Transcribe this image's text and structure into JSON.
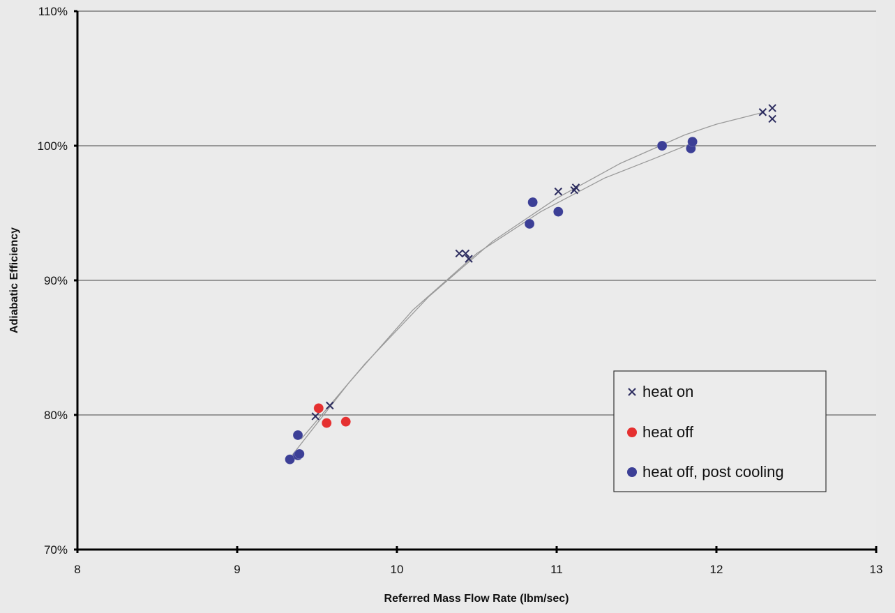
{
  "chart_data": {
    "type": "scatter",
    "title": "",
    "xlabel": "Referred Mass Flow Rate (lbm/sec)",
    "ylabel": "Adiabatic Efficiency",
    "xlim": [
      8,
      13
    ],
    "ylim": [
      70,
      110
    ],
    "x_ticks": [
      8,
      9,
      10,
      11,
      12,
      13
    ],
    "x_tick_labels": [
      "8",
      "9",
      "10",
      "11",
      "12",
      "13"
    ],
    "y_ticks": [
      70,
      80,
      90,
      100,
      110
    ],
    "y_tick_labels": [
      "70%",
      "80%",
      "90%",
      "100%",
      "110%"
    ],
    "grid": "horizontal",
    "legend_position": "lower-right",
    "series": [
      {
        "name": "heat on",
        "marker": "x",
        "color": "#2b2b5e",
        "points": [
          {
            "x": 9.49,
            "y": 79.9
          },
          {
            "x": 9.58,
            "y": 80.7
          },
          {
            "x": 10.39,
            "y": 92.0
          },
          {
            "x": 10.43,
            "y": 92.0
          },
          {
            "x": 10.45,
            "y": 91.6
          },
          {
            "x": 11.01,
            "y": 96.6
          },
          {
            "x": 11.11,
            "y": 96.7
          },
          {
            "x": 11.12,
            "y": 96.9
          },
          {
            "x": 12.29,
            "y": 102.5
          },
          {
            "x": 12.35,
            "y": 102.8
          },
          {
            "x": 12.35,
            "y": 102.0
          }
        ]
      },
      {
        "name": "heat off",
        "marker": "circle",
        "color": "#e53030",
        "points": [
          {
            "x": 9.51,
            "y": 80.5
          },
          {
            "x": 9.56,
            "y": 79.4
          },
          {
            "x": 9.68,
            "y": 79.5
          }
        ]
      },
      {
        "name": "heat off, post cooling",
        "marker": "circle",
        "color": "#3c3f96",
        "points": [
          {
            "x": 9.33,
            "y": 76.7
          },
          {
            "x": 9.38,
            "y": 77.0
          },
          {
            "x": 9.39,
            "y": 77.1
          },
          {
            "x": 9.38,
            "y": 78.5
          },
          {
            "x": 10.83,
            "y": 94.2
          },
          {
            "x": 10.85,
            "y": 95.8
          },
          {
            "x": 11.01,
            "y": 95.1
          },
          {
            "x": 11.66,
            "y": 100.0
          },
          {
            "x": 11.84,
            "y": 99.8
          },
          {
            "x": 11.85,
            "y": 100.3
          }
        ]
      }
    ],
    "trendlines": [
      {
        "color": "#9a9a9a",
        "points": [
          {
            "x": 9.4,
            "y": 78.2
          },
          {
            "x": 9.8,
            "y": 83.8
          },
          {
            "x": 10.2,
            "y": 88.8
          },
          {
            "x": 10.6,
            "y": 92.9
          },
          {
            "x": 11.0,
            "y": 96.1
          },
          {
            "x": 11.4,
            "y": 98.7
          },
          {
            "x": 11.8,
            "y": 100.8
          },
          {
            "x": 12.0,
            "y": 101.6
          },
          {
            "x": 12.3,
            "y": 102.5
          }
        ]
      },
      {
        "color": "#9a9a9a",
        "points": [
          {
            "x": 9.33,
            "y": 76.8
          },
          {
            "x": 9.7,
            "y": 82.4
          },
          {
            "x": 10.1,
            "y": 87.8
          },
          {
            "x": 10.5,
            "y": 92.0
          },
          {
            "x": 10.9,
            "y": 95.1
          },
          {
            "x": 11.3,
            "y": 97.6
          },
          {
            "x": 11.6,
            "y": 99.0
          },
          {
            "x": 11.85,
            "y": 100.2
          }
        ]
      }
    ]
  }
}
